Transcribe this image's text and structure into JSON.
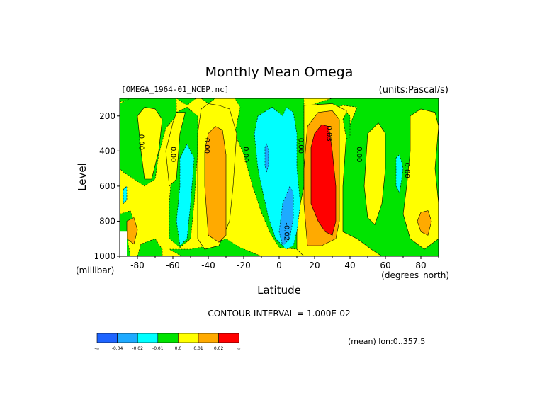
{
  "chart_data": {
    "type": "contour",
    "title": "Monthly Mean Omega",
    "file_label": "[OMEGA_1964-01_NCEP.nc]",
    "units_label": "(units:Pascal/s)",
    "xlabel": "Latitude",
    "x_unit_label": "(degrees_north)",
    "ylabel": "Level",
    "y_unit_label": "(millibar)",
    "xlim": [
      -90,
      90
    ],
    "ylim": [
      1000,
      100
    ],
    "x_ticks": [
      -80,
      -60,
      -40,
      -20,
      0,
      20,
      40,
      60,
      80
    ],
    "x_tick_labels": [
      "-80",
      "-60",
      "-40",
      "-20",
      "0",
      "20",
      "40",
      "60",
      "80"
    ],
    "y_ticks": [
      200,
      400,
      600,
      800,
      1000
    ],
    "y_tick_labels": [
      "200",
      "400",
      "600",
      "800",
      "1000"
    ],
    "contour_interval_text": "CONTOUR INTERVAL = 1.000E-02",
    "mean_text": "(mean) lon:0..357.5",
    "contour_labels": [
      {
        "text": "0.00",
        "lat": -79,
        "lev": 350
      },
      {
        "text": "0.00",
        "lat": -61,
        "lev": 420
      },
      {
        "text": "0.00",
        "lat": -42,
        "lev": 370
      },
      {
        "text": "0.00",
        "lat": -20,
        "lev": 420
      },
      {
        "text": "0.00",
        "lat": 11,
        "lev": 370
      },
      {
        "text": "0.03",
        "lat": 27,
        "lev": 300
      },
      {
        "text": "0.00",
        "lat": 44,
        "lev": 420
      },
      {
        "text": "0.00",
        "lat": 71,
        "lev": 510
      },
      {
        "text": "-0.02",
        "lat": 3,
        "lev": 860
      }
    ],
    "colorbar": {
      "levels": [
        "-∞",
        "-0.04",
        "-0.02",
        "-0.01",
        "0.0",
        "0.01",
        "0.02",
        "∞"
      ],
      "colors": [
        "#1e64ff",
        "#1eaaff",
        "#00ffff",
        "#00e400",
        "#ffff00",
        "#ffaa00",
        "#ff0000"
      ]
    },
    "regions": [
      {
        "level": "positive_0_0.01",
        "color": "#ffff00",
        "points": [
          [
            -90,
            100
          ],
          [
            90,
            100
          ],
          [
            90,
            1000
          ],
          [
            -90,
            1000
          ]
        ]
      },
      {
        "level": "negative_0_-0.01",
        "color": "#00e400",
        "points": [
          [
            -90,
            120
          ],
          [
            -78,
            100
          ],
          [
            -58,
            100
          ],
          [
            -52,
            140
          ],
          [
            -47,
            100
          ],
          [
            -25,
            100
          ],
          [
            -22,
            150
          ],
          [
            -25,
            300
          ],
          [
            -20,
            420
          ],
          [
            -15,
            600
          ],
          [
            -10,
            750
          ],
          [
            -5,
            870
          ],
          [
            0,
            950
          ],
          [
            10,
            960
          ],
          [
            14,
            900
          ],
          [
            14,
            100
          ],
          [
            2,
            100
          ],
          [
            -5,
            100
          ],
          [
            -20,
            100
          ],
          [
            -28,
            100
          ],
          [
            -36,
            100
          ],
          [
            -40,
            130
          ],
          [
            -44,
            100
          ],
          [
            -54,
            100
          ],
          [
            -90,
            100
          ]
        ]
      },
      {
        "level": "negative_0_-0.01",
        "color": "#00e400",
        "points": [
          [
            -90,
            130
          ],
          [
            -84,
            100
          ],
          [
            -58,
            100
          ],
          [
            -58,
            200
          ],
          [
            -64,
            270
          ],
          [
            -68,
            420
          ],
          [
            -70,
            560
          ],
          [
            -76,
            600
          ],
          [
            -82,
            560
          ],
          [
            -88,
            520
          ],
          [
            -90,
            500
          ]
        ]
      },
      {
        "level": "negative_0_-0.01",
        "color": "#00e400",
        "points": [
          [
            -58,
            180
          ],
          [
            -52,
            150
          ],
          [
            -46,
            200
          ],
          [
            -46,
            400
          ],
          [
            -48,
            700
          ],
          [
            -50,
            900
          ],
          [
            -56,
            950
          ],
          [
            -62,
            900
          ],
          [
            -62,
            700
          ],
          [
            -60,
            400
          ]
        ]
      },
      {
        "level": "negative_0_-0.01",
        "color": "#00e400",
        "points": [
          [
            -40,
            940
          ],
          [
            -30,
            900
          ],
          [
            -22,
            950
          ],
          [
            -10,
            1000
          ],
          [
            -55,
            1000
          ],
          [
            -62,
            960
          ],
          [
            -50,
            960
          ]
        ]
      },
      {
        "level": "negative_0_-0.01",
        "color": "#00e400",
        "points": [
          [
            30,
            100
          ],
          [
            90,
            100
          ],
          [
            90,
            1000
          ],
          [
            55,
            1000
          ],
          [
            48,
            940
          ],
          [
            44,
            900
          ],
          [
            36,
            880
          ],
          [
            34,
            800
          ],
          [
            34,
            600
          ],
          [
            36,
            400
          ],
          [
            40,
            250
          ],
          [
            44,
            150
          ],
          [
            36,
            140
          ],
          [
            30,
            160
          ],
          [
            26,
            140
          ],
          [
            20,
            130
          ]
        ]
      },
      {
        "level": "negative_0_-0.01",
        "color": "#00e400",
        "points": [
          [
            -90,
            760
          ],
          [
            -84,
            740
          ],
          [
            -82,
            800
          ],
          [
            -86,
            880
          ],
          [
            -84,
            1000
          ],
          [
            -90,
            1000
          ]
        ]
      },
      {
        "level": "negative_0_-0.01",
        "color": "#00e400",
        "points": [
          [
            -80,
            1000
          ],
          [
            -78,
            930
          ],
          [
            -70,
            900
          ],
          [
            -66,
            960
          ],
          [
            -66,
            1000
          ]
        ]
      },
      {
        "level": "positive_0_0.01",
        "color": "#ffff00",
        "points": [
          [
            74,
            200
          ],
          [
            80,
            160
          ],
          [
            88,
            180
          ],
          [
            90,
            260
          ],
          [
            88,
            500
          ],
          [
            90,
            700
          ],
          [
            90,
            900
          ],
          [
            82,
            960
          ],
          [
            74,
            900
          ],
          [
            70,
            760
          ],
          [
            72,
            600
          ],
          [
            74,
            400
          ]
        ]
      },
      {
        "level": "positive_0_0.01",
        "color": "#ffff00",
        "points": [
          [
            50,
            300
          ],
          [
            56,
            240
          ],
          [
            60,
            300
          ],
          [
            60,
            500
          ],
          [
            58,
            700
          ],
          [
            54,
            820
          ],
          [
            50,
            780
          ],
          [
            48,
            600
          ]
        ]
      },
      {
        "level": "positive_0_0.01",
        "color": "#ffff00",
        "points": [
          [
            -80,
            200
          ],
          [
            -76,
            150
          ],
          [
            -70,
            160
          ],
          [
            -66,
            220
          ],
          [
            -68,
            400
          ],
          [
            -72,
            560
          ],
          [
            -76,
            560
          ],
          [
            -78,
            400
          ]
        ]
      },
      {
        "level": "positive_0_0.01",
        "color": "#ffff00",
        "points": [
          [
            -60,
            240
          ],
          [
            -58,
            180
          ],
          [
            -53,
            180
          ],
          [
            -56,
            300
          ],
          [
            -58,
            560
          ],
          [
            -62,
            600
          ],
          [
            -64,
            400
          ]
        ]
      },
      {
        "level": "positive_0_0.01",
        "color": "#ffff00",
        "points": [
          [
            -44,
            160
          ],
          [
            -40,
            130
          ],
          [
            -34,
            140
          ],
          [
            -28,
            160
          ],
          [
            -24,
            300
          ],
          [
            -26,
            600
          ],
          [
            -28,
            800
          ],
          [
            -34,
            940
          ],
          [
            -42,
            960
          ],
          [
            -46,
            900
          ],
          [
            -46,
            600
          ],
          [
            -46,
            300
          ]
        ]
      },
      {
        "level": "positive_0_0.01",
        "color": "#ffff00",
        "points": [
          [
            14,
            140
          ],
          [
            30,
            130
          ],
          [
            38,
            170
          ],
          [
            38,
            300
          ],
          [
            36,
            600
          ],
          [
            36,
            860
          ],
          [
            44,
            900
          ],
          [
            52,
            960
          ],
          [
            58,
            1000
          ],
          [
            14,
            1000
          ],
          [
            10,
            960
          ],
          [
            10,
            800
          ],
          [
            14,
            600
          ]
        ]
      },
      {
        "level": "positive_0.01_0.02",
        "color": "#ffaa00",
        "points": [
          [
            -40,
            300
          ],
          [
            -36,
            260
          ],
          [
            -32,
            280
          ],
          [
            -30,
            420
          ],
          [
            -30,
            700
          ],
          [
            -30,
            880
          ],
          [
            -34,
            920
          ],
          [
            -40,
            880
          ],
          [
            -42,
            600
          ],
          [
            -42,
            400
          ]
        ]
      },
      {
        "level": "positive_0.01_0.02",
        "color": "#ffaa00",
        "points": [
          [
            16,
            260
          ],
          [
            22,
            180
          ],
          [
            30,
            170
          ],
          [
            34,
            220
          ],
          [
            34,
            600
          ],
          [
            34,
            800
          ],
          [
            32,
            900
          ],
          [
            24,
            940
          ],
          [
            16,
            940
          ],
          [
            14,
            700
          ],
          [
            14,
            500
          ]
        ]
      },
      {
        "level": "positive_0.01_0.02",
        "color": "#ffaa00",
        "points": [
          [
            80,
            750
          ],
          [
            84,
            740
          ],
          [
            86,
            800
          ],
          [
            84,
            880
          ],
          [
            80,
            860
          ],
          [
            78,
            800
          ]
        ]
      },
      {
        "level": "positive_0.01_0.02",
        "color": "#ffaa00",
        "points": [
          [
            -86,
            800
          ],
          [
            -82,
            780
          ],
          [
            -80,
            850
          ],
          [
            -82,
            930
          ],
          [
            -86,
            900
          ]
        ]
      },
      {
        "level": "positive_0.02_inf",
        "color": "#ff0000",
        "points": [
          [
            20,
            300
          ],
          [
            24,
            250
          ],
          [
            28,
            260
          ],
          [
            30,
            400
          ],
          [
            32,
            600
          ],
          [
            32,
            800
          ],
          [
            30,
            880
          ],
          [
            26,
            860
          ],
          [
            22,
            800
          ],
          [
            18,
            700
          ],
          [
            18,
            500
          ],
          [
            18,
            380
          ]
        ]
      },
      {
        "level": "negative_-0.01_-0.02",
        "color": "#00ffff",
        "points": [
          [
            -14,
            300
          ],
          [
            -12,
            200
          ],
          [
            -4,
            150
          ],
          [
            2,
            200
          ],
          [
            4,
            150
          ],
          [
            8,
            180
          ],
          [
            10,
            300
          ],
          [
            10,
            500
          ],
          [
            12,
            700
          ],
          [
            10,
            860
          ],
          [
            8,
            940
          ],
          [
            4,
            960
          ],
          [
            -2,
            900
          ],
          [
            -6,
            780
          ],
          [
            -10,
            600
          ],
          [
            -12,
            500
          ]
        ]
      },
      {
        "level": "negative_-0.01_-0.02",
        "color": "#00ffff",
        "points": [
          [
            -56,
            440
          ],
          [
            -52,
            360
          ],
          [
            -48,
            440
          ],
          [
            -50,
            700
          ],
          [
            -52,
            900
          ],
          [
            -56,
            940
          ],
          [
            -58,
            800
          ],
          [
            -56,
            600
          ]
        ]
      },
      {
        "level": "negative_-0.01_-0.02",
        "color": "#00ffff",
        "points": [
          [
            66,
            440
          ],
          [
            68,
            420
          ],
          [
            70,
            500
          ],
          [
            68,
            640
          ],
          [
            66,
            600
          ]
        ]
      },
      {
        "level": "negative_-0.01_-0.02",
        "color": "#00ffff",
        "points": [
          [
            -88,
            620
          ],
          [
            -86,
            600
          ],
          [
            -86,
            680
          ],
          [
            -88,
            700
          ]
        ]
      },
      {
        "level": "negative_-0.02_-0.04",
        "color": "#1eaaff",
        "points": [
          [
            2,
            700
          ],
          [
            6,
            600
          ],
          [
            8,
            640
          ],
          [
            8,
            780
          ],
          [
            6,
            900
          ],
          [
            2,
            940
          ],
          [
            0,
            860
          ]
        ]
      },
      {
        "level": "negative_-0.02_-0.04",
        "color": "#1eaaff",
        "points": [
          [
            -8,
            380
          ],
          [
            -7,
            360
          ],
          [
            -6,
            400
          ],
          [
            -6,
            480
          ],
          [
            -7,
            520
          ],
          [
            -8,
            480
          ]
        ]
      },
      {
        "level": "negative_0_-0.01",
        "color": "#00e400",
        "points": [
          [
            36,
            220
          ],
          [
            38,
            180
          ],
          [
            40,
            200
          ],
          [
            40,
            320
          ],
          [
            38,
            330
          ]
        ]
      },
      {
        "level": "missing",
        "color": "#ffffff",
        "points": [
          [
            -90,
            860
          ],
          [
            -86,
            860
          ],
          [
            -86,
            1000
          ],
          [
            -90,
            1000
          ]
        ]
      }
    ]
  }
}
